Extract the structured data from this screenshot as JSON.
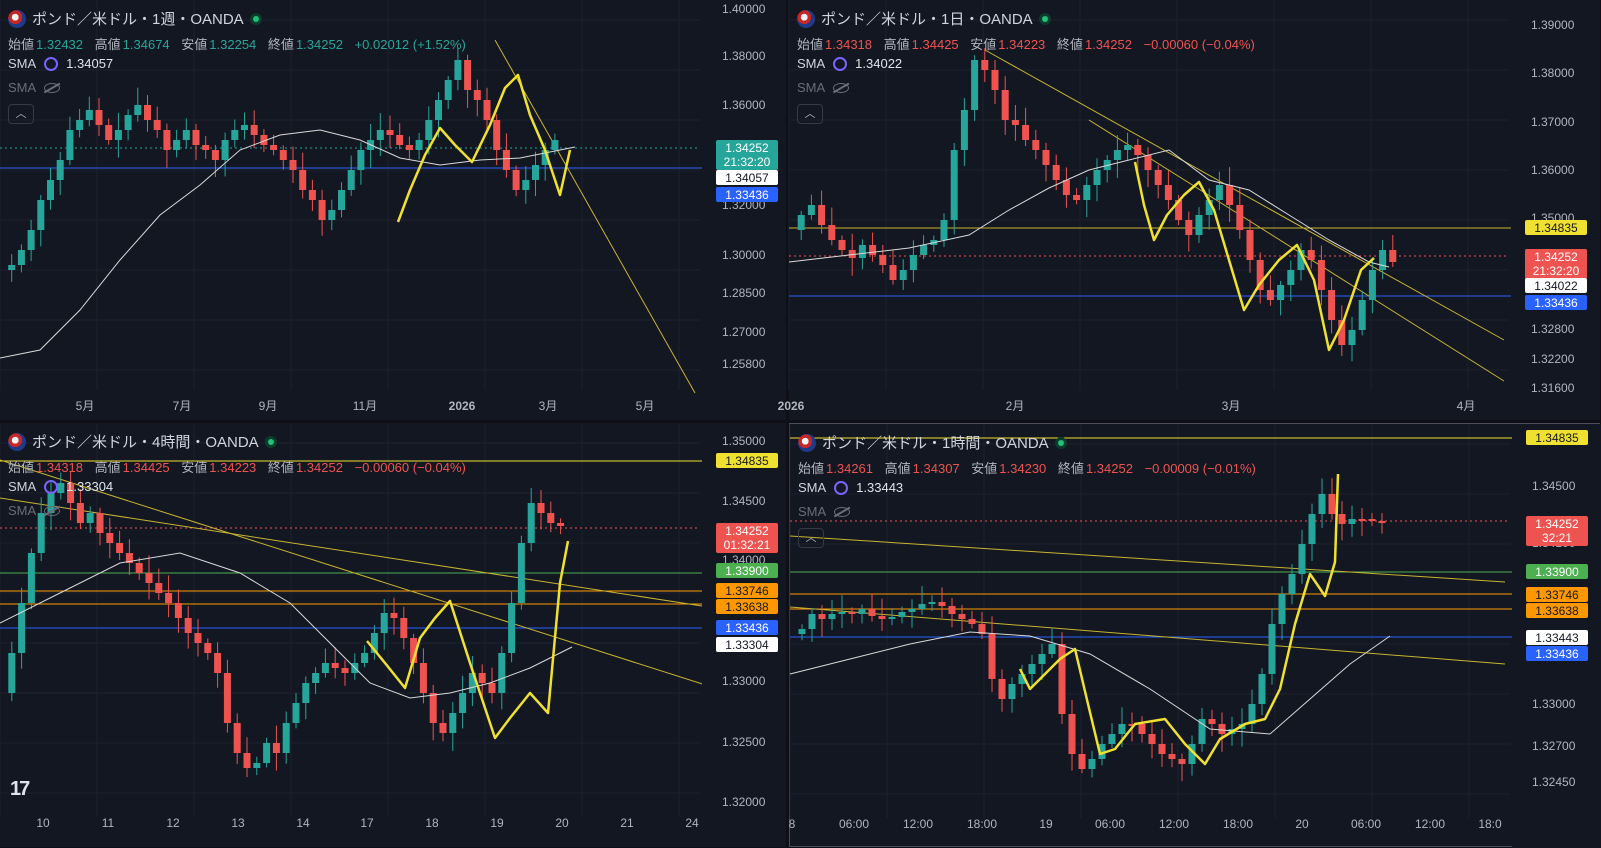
{
  "colors": {
    "bg": "#131722",
    "up": "#26a69a",
    "down": "#ef5350",
    "sma": "#d9d9d9",
    "drawing": "#f0e130",
    "trendline": "#c9b430",
    "blue_line": "#2962ff",
    "green_line": "#4caf50",
    "orange_line": "#ff9800"
  },
  "panes": [
    {
      "title": "ポンド／米ドル・1週・OANDA",
      "direction": "up",
      "ohlc": {
        "open_label": "始値",
        "open": "1.32432",
        "high_label": "高値",
        "high": "1.34674",
        "low_label": "安値",
        "low": "1.32254",
        "close_label": "終値",
        "close": "1.34252",
        "change": "+0.02012 (+1.52%)"
      },
      "sma": {
        "label": "SMA",
        "value": "1.34057"
      },
      "sma2": {
        "label": "SMA"
      },
      "price_ticks": [
        "1.40000",
        "1.38000",
        "1.36000",
        "1.34252",
        "1.32000",
        "1.30000",
        "1.28500",
        "1.27000",
        "1.25800"
      ],
      "time_ticks": [
        "5月",
        "7月",
        "9月",
        "11月",
        "2026",
        "3月",
        "5月"
      ],
      "tags": [
        {
          "text": "1.34252",
          "sub": "21:32:20",
          "bg": "#26a69a",
          "fg": "#ffffff"
        },
        {
          "text": "1.34057",
          "bg": "#ffffff",
          "fg": "#131722"
        },
        {
          "text": "1.33436",
          "bg": "#2962ff",
          "fg": "#ffffff"
        }
      ]
    },
    {
      "title": "ポンド／米ドル・1日・OANDA",
      "direction": "down",
      "ohlc": {
        "open_label": "始値",
        "open": "1.34318",
        "high_label": "高値",
        "high": "1.34425",
        "low_label": "安値",
        "low": "1.34223",
        "close_label": "終値",
        "close": "1.34252",
        "change": "−0.00060 (−0.04%)"
      },
      "sma": {
        "label": "SMA",
        "value": "1.34022"
      },
      "sma2": {
        "label": "SMA"
      },
      "price_ticks": [
        "1.39000",
        "1.38000",
        "1.37000",
        "1.36000",
        "1.35000",
        "1.32800",
        "1.32200",
        "1.31600"
      ],
      "time_ticks": [
        "2026",
        "2月",
        "3月",
        "4月"
      ],
      "tags": [
        {
          "text": "1.34835",
          "bg": "#f0e130",
          "fg": "#131722"
        },
        {
          "text": "1.34252",
          "sub": "21:32:20",
          "bg": "#ef5350",
          "fg": "#ffffff"
        },
        {
          "text": "1.34022",
          "bg": "#ffffff",
          "fg": "#131722"
        },
        {
          "text": "1.33436",
          "bg": "#2962ff",
          "fg": "#ffffff"
        }
      ]
    },
    {
      "title": "ポンド／米ドル・4時間・OANDA",
      "direction": "down",
      "ohlc": {
        "open_label": "始値",
        "open": "1.34318",
        "high_label": "高値",
        "high": "1.34425",
        "low_label": "安値",
        "low": "1.34223",
        "close_label": "終値",
        "close": "1.34252",
        "change": "−0.00060 (−0.04%)"
      },
      "sma": {
        "label": "SMA",
        "value": "1.33304"
      },
      "sma2": {
        "label": "SMA"
      },
      "price_ticks": [
        "1.35000",
        "1.34500",
        "1.34000",
        "1.33000",
        "1.32500",
        "1.32000"
      ],
      "time_ticks": [
        "10",
        "11",
        "12",
        "13",
        "14",
        "17",
        "18",
        "19",
        "20",
        "21",
        "24"
      ],
      "tags": [
        {
          "text": "1.34835",
          "bg": "#f0e130",
          "fg": "#131722"
        },
        {
          "text": "1.34252",
          "sub": "01:32:21",
          "bg": "#ef5350",
          "fg": "#ffffff"
        },
        {
          "text": "1.33900",
          "bg": "#4caf50",
          "fg": "#ffffff"
        },
        {
          "text": "1.33746",
          "bg": "#ff9800",
          "fg": "#131722"
        },
        {
          "text": "1.33638",
          "bg": "#ff9800",
          "fg": "#131722"
        },
        {
          "text": "1.33436",
          "bg": "#2962ff",
          "fg": "#ffffff"
        },
        {
          "text": "1.33304",
          "bg": "#ffffff",
          "fg": "#131722"
        }
      ]
    },
    {
      "title": "ポンド／米ドル・1時間・OANDA",
      "direction": "down",
      "ohlc": {
        "open_label": "始値",
        "open": "1.34261",
        "high_label": "高値",
        "high": "1.34307",
        "low_label": "安値",
        "low": "1.34230",
        "close_label": "終値",
        "close": "1.34252",
        "change": "−0.00009 (−0.01%)"
      },
      "sma": {
        "label": "SMA",
        "value": "1.33443"
      },
      "sma2": {
        "label": "SMA"
      },
      "price_ticks": [
        "1.34500",
        "1.34100",
        "1.33000",
        "1.32700",
        "1.32450"
      ],
      "time_ticks": [
        "8",
        "06:00",
        "12:00",
        "18:00",
        "19",
        "06:00",
        "12:00",
        "18:00",
        "20",
        "06:00",
        "12:00",
        "18:0"
      ],
      "tags": [
        {
          "text": "1.34835",
          "bg": "#f0e130",
          "fg": "#131722"
        },
        {
          "text": "1.34252",
          "sub": "32:21",
          "bg": "#ef5350",
          "fg": "#ffffff"
        },
        {
          "text": "1.33900",
          "bg": "#4caf50",
          "fg": "#ffffff"
        },
        {
          "text": "1.33746",
          "bg": "#ff9800",
          "fg": "#131722"
        },
        {
          "text": "1.33638",
          "bg": "#ff9800",
          "fg": "#131722"
        },
        {
          "text": "1.33443",
          "bg": "#ffffff",
          "fg": "#131722"
        },
        {
          "text": "1.33436",
          "bg": "#2962ff",
          "fg": "#ffffff"
        }
      ]
    }
  ],
  "logo": "17"
}
